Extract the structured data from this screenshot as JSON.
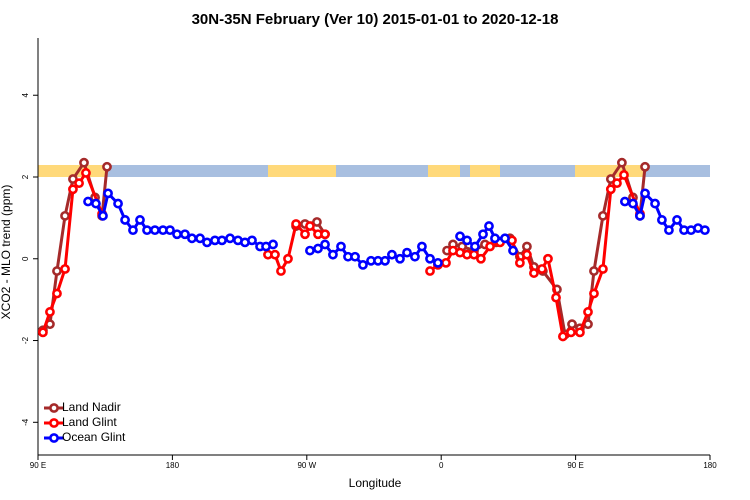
{
  "chart_data": {
    "type": "line",
    "title": "30N-35N February (Ver 10)   2015-01-01 to 2020-12-18",
    "xlabel": "Longitude",
    "ylabel": "XCO2 - MLO trend (ppm)",
    "xlim": [
      90,
      540
    ],
    "ylim": [
      -4.8,
      5.4
    ],
    "xticks": [
      {
        "value": 90,
        "label": "90 E"
      },
      180,
      {
        "value": 270,
        "label": "90 W"
      },
      {
        "value": 360,
        "label": "0"
      },
      {
        "value": 450,
        "label": "90 E"
      },
      {
        "value": 540,
        "label": "180"
      }
    ],
    "yticks": [
      -4,
      -2,
      0,
      2,
      4
    ],
    "legend": "bottomleft",
    "series": [
      {
        "name": "Land Nadir",
        "color": "#a52a2a",
        "x": [
          93.3,
          98.0,
          102.7,
          108.1,
          113.4,
          120.8,
          128.2,
          132.9,
          136.2,
          null,
          262.8,
          268.8,
          276.8,
          282.2,
          null,
          363.9,
          367.9,
          374.0,
          382.0,
          389.3,
          396.7,
          406.1,
          412.7,
          417.4,
          422.1,
          428.1,
          437.5,
          442.9,
          447.6,
          452.9,
          458.3,
          462.3,
          468.3,
          473.6,
          481.0,
          488.4,
          493.1,
          496.5
        ],
        "values": [
          -1.75,
          -1.6,
          -0.3,
          1.05,
          1.95,
          2.35,
          1.5,
          1.05,
          2.25,
          null,
          0.8,
          0.85,
          0.9,
          0.6,
          null,
          0.2,
          0.35,
          0.3,
          0.2,
          0.35,
          0.4,
          0.5,
          0.05,
          0.3,
          -0.2,
          -0.3,
          -0.75,
          -1.85,
          -1.6,
          -1.7,
          -1.6,
          -0.3,
          1.05,
          1.95,
          2.35,
          1.5,
          1.05,
          2.25
        ]
      },
      {
        "name": "Land Glint",
        "color": "#ff0000",
        "x": [
          93.3,
          98.0,
          102.7,
          108.1,
          113.4,
          117.5,
          122.1,
          132.9,
          null,
          244.0,
          248.7,
          252.7,
          257.4,
          262.8,
          268.8,
          272.1,
          277.5,
          282.2,
          null,
          352.5,
          357.8,
          363.2,
          367.9,
          372.6,
          377.3,
          382.0,
          386.6,
          392.7,
          399.4,
          407.4,
          412.7,
          417.4,
          422.1,
          427.5,
          431.5,
          436.9,
          441.5,
          446.9,
          452.9,
          458.3,
          462.3,
          468.3,
          473.6,
          477.7,
          482.4,
          493.1
        ],
        "values": [
          -1.8,
          -1.3,
          -0.85,
          -0.25,
          1.7,
          1.85,
          2.1,
          1.1,
          null,
          0.1,
          0.1,
          -0.3,
          0,
          0.85,
          0.6,
          0.8,
          0.6,
          0.6,
          null,
          -0.3,
          -0.15,
          -0.1,
          0.2,
          0.15,
          0.1,
          0.1,
          0,
          0.3,
          0.4,
          0.45,
          -0.1,
          0.1,
          -0.35,
          -0.25,
          0,
          -0.95,
          -1.9,
          -1.8,
          -1.8,
          -1.3,
          -0.85,
          -0.25,
          1.7,
          1.85,
          2.05,
          1.1
        ]
      },
      {
        "name": "Ocean Glint",
        "color": "#0000ff",
        "x": [
          123.5,
          128.8,
          133.5,
          136.9,
          143.6,
          148.3,
          153.6,
          158.3,
          163.0,
          168.3,
          173.7,
          178.4,
          183.1,
          188.4,
          193.1,
          198.5,
          203.2,
          208.5,
          213.2,
          218.6,
          223.9,
          228.6,
          233.3,
          238.7,
          242.7,
          247.4,
          null,
          272.1,
          277.5,
          282.2,
          287.5,
          292.9,
          297.6,
          302.3,
          307.6,
          313.0,
          317.7,
          322.4,
          327.0,
          332.4,
          337.1,
          342.4,
          347.1,
          352.5,
          357.8,
          null,
          372.6,
          377.3,
          382.6,
          388.0,
          392.0,
          396.0,
          402.7,
          408.1,
          null,
          483.0,
          488.4,
          493.1,
          496.5,
          503.2,
          507.8,
          512.5,
          517.9,
          522.6,
          527.3,
          532.0,
          536.6
        ],
        "values": [
          1.4,
          1.35,
          1.05,
          1.6,
          1.35,
          0.95,
          0.7,
          0.95,
          0.7,
          0.7,
          0.7,
          0.7,
          0.6,
          0.6,
          0.5,
          0.5,
          0.4,
          0.45,
          0.45,
          0.5,
          0.45,
          0.4,
          0.45,
          0.3,
          0.3,
          0.35,
          null,
          0.2,
          0.25,
          0.35,
          0.1,
          0.3,
          0.05,
          0.05,
          -0.15,
          -0.05,
          -0.05,
          -0.05,
          0.1,
          0,
          0.15,
          0.05,
          0.3,
          0,
          -0.1,
          null,
          0.55,
          0.45,
          0.3,
          0.6,
          0.8,
          0.5,
          0.5,
          0.2,
          null,
          1.4,
          1.35,
          1.05,
          1.6,
          1.35,
          0.95,
          0.7,
          0.95,
          0.7,
          0.7,
          0.75,
          0.7
        ]
      }
    ]
  }
}
